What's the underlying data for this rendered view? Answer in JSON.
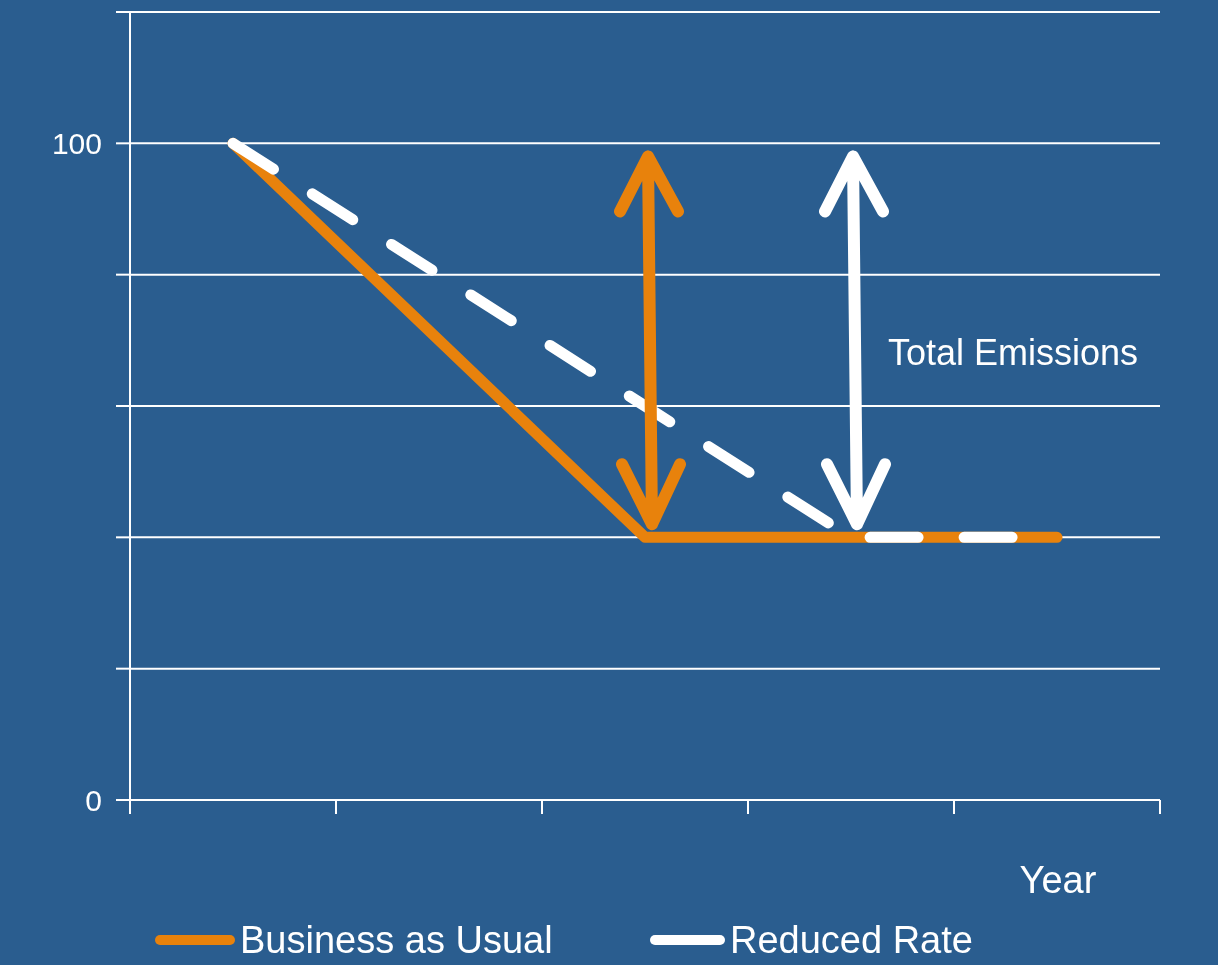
{
  "chart_data": {
    "type": "line",
    "xlabel": "Year",
    "categories": [
      null,
      null,
      null,
      null,
      null
    ],
    "series": [
      {
        "name": "Business as Usual",
        "color": "#e8820c",
        "values": [
          100,
          70,
          40,
          40,
          40
        ],
        "line_style": "solid"
      },
      {
        "name": "Reduced Rate",
        "color": "#ffffff",
        "values": [
          100,
          80,
          60,
          40,
          40
        ],
        "line_style": "dashed"
      }
    ],
    "ylim": [
      0,
      120
    ],
    "yticks": [
      0,
      {
        "value": 20,
        "label": null
      },
      {
        "value": 40,
        "label": null
      },
      {
        "value": 60,
        "label": null
      },
      {
        "value": 80,
        "label": null
      },
      100,
      {
        "value": 120,
        "label": null
      }
    ],
    "grid": "y",
    "legend": "bottom",
    "annotations": [
      "Total Emissions"
    ]
  }
}
